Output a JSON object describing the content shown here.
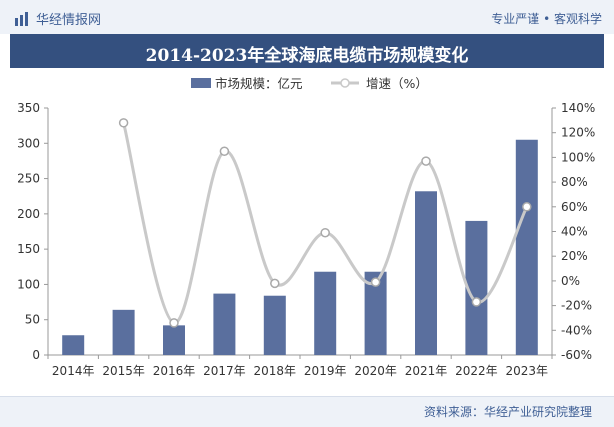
{
  "header": {
    "brand": "华经情报网",
    "brand_icon": "bar-logo-icon",
    "slogan": "专业严谨 • 客观科学"
  },
  "footer": {
    "source": "资料来源：华经产业研究院整理"
  },
  "colors": {
    "bar": "#5a6f9e",
    "line": "#c9c9c9",
    "title_band": "#34507f",
    "brand": "#3f5f95"
  },
  "chart_data": {
    "type": "bar",
    "title": "2014-2023年全球海底电缆市场规模变化",
    "categories": [
      "2014年",
      "2015年",
      "2016年",
      "2017年",
      "2018年",
      "2019年",
      "2020年",
      "2021年",
      "2022年",
      "2023年"
    ],
    "series": [
      {
        "name": "市场规模：亿元",
        "type": "bar",
        "axis": "left",
        "values": [
          28,
          64,
          42,
          87,
          84,
          118,
          118,
          232,
          190,
          305
        ]
      },
      {
        "name": "增速（%）",
        "type": "line",
        "axis": "right",
        "values": [
          null,
          128,
          -34,
          105,
          -2,
          39,
          -1,
          97,
          -17,
          60
        ]
      }
    ],
    "ylim_left": [
      0,
      350
    ],
    "yticks_left": [
      "0",
      "50",
      "100",
      "150",
      "200",
      "250",
      "300",
      "350"
    ],
    "ylim_right": [
      -60,
      140
    ],
    "yticks_right": [
      "-60%",
      "-40%",
      "-20%",
      "0%",
      "20%",
      "40%",
      "60%",
      "80%",
      "100%",
      "120%",
      "140%"
    ],
    "legend_position": "top-center",
    "grid": false
  }
}
